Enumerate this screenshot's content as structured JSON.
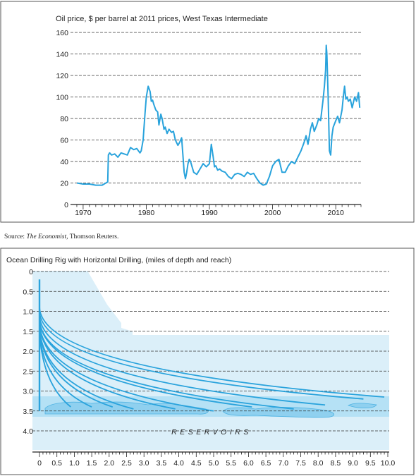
{
  "source": {
    "prefix": "Source: ",
    "publication": "The Economist",
    "rest": ", Thomson Reuters."
  },
  "chart_data": [
    {
      "type": "line",
      "title": "Oil price, $ per barrel at 2011 prices, West Texas Intermediate",
      "xlabel": "",
      "ylabel": "",
      "xlim": [
        1968,
        2014
      ],
      "ylim": [
        0,
        160
      ],
      "x_ticks": [
        1970,
        1980,
        1990,
        2000,
        2010
      ],
      "y_ticks": [
        0,
        20,
        40,
        60,
        80,
        100,
        120,
        140,
        160
      ],
      "grid": "dashed horizontal",
      "color": "#29a3dc",
      "series": [
        {
          "x": [
            1969.0,
            1970.0,
            1971.0,
            1972.0,
            1973.0,
            1973.9,
            1974.0,
            1974.2,
            1974.5,
            1975.0,
            1975.5,
            1976.0,
            1976.5,
            1977.0,
            1977.5,
            1978.0,
            1978.5,
            1979.0,
            1979.2,
            1979.5,
            1979.8,
            1980.0,
            1980.3,
            1980.6,
            1980.8,
            1981.0,
            1981.2,
            1981.5,
            1981.8,
            1982.0,
            1982.3,
            1982.5,
            1982.8,
            1983.0,
            1983.3,
            1983.6,
            1984.0,
            1984.3,
            1984.6,
            1985.0,
            1985.3,
            1985.6,
            1986.0,
            1986.2,
            1986.4,
            1986.6,
            1986.8,
            1987.0,
            1987.5,
            1988.0,
            1988.5,
            1989.0,
            1989.5,
            1990.0,
            1990.3,
            1990.6,
            1990.8,
            1991.0,
            1991.3,
            1991.6,
            1992.0,
            1992.5,
            1993.0,
            1993.5,
            1994.0,
            1994.5,
            1995.0,
            1995.5,
            1996.0,
            1996.5,
            1997.0,
            1997.5,
            1998.0,
            1998.5,
            1999.0,
            1999.5,
            2000.0,
            2000.5,
            2001.0,
            2001.5,
            2002.0,
            2002.5,
            2003.0,
            2003.5,
            2004.0,
            2004.5,
            2005.0,
            2005.3,
            2005.6,
            2006.0,
            2006.3,
            2006.6,
            2007.0,
            2007.3,
            2007.6,
            2008.0,
            2008.2,
            2008.4,
            2008.5,
            2008.6,
            2008.8,
            2009.0,
            2009.2,
            2009.4,
            2009.6,
            2010.0,
            2010.3,
            2010.6,
            2011.0,
            2011.2,
            2011.4,
            2011.6,
            2011.8,
            2012.0,
            2012.3,
            2012.6,
            2013.0,
            2013.3,
            2013.6,
            2013.8
          ],
          "y": [
            20,
            19,
            19,
            18,
            18,
            21,
            46,
            48,
            46,
            47,
            44,
            48,
            47,
            46,
            53,
            51,
            52,
            48,
            50,
            60,
            85,
            100,
            110,
            105,
            96,
            97,
            93,
            88,
            86,
            74,
            84,
            80,
            70,
            72,
            66,
            70,
            67,
            68,
            60,
            55,
            58,
            62,
            30,
            24,
            30,
            38,
            42,
            40,
            30,
            28,
            33,
            38,
            35,
            38,
            56,
            44,
            35,
            36,
            32,
            33,
            31,
            30,
            26,
            24,
            28,
            29,
            28,
            26,
            30,
            28,
            29,
            24,
            20,
            18,
            19,
            26,
            36,
            40,
            42,
            30,
            30,
            36,
            40,
            38,
            44,
            50,
            58,
            64,
            56,
            70,
            76,
            68,
            74,
            80,
            78,
            98,
            110,
            125,
            148,
            140,
            100,
            50,
            46,
            64,
            72,
            78,
            82,
            76,
            88,
            100,
            110,
            98,
            100,
            96,
            98,
            90,
            100,
            96,
            104,
            90
          ]
        }
      ]
    },
    {
      "type": "diagram",
      "title": "Ocean Drilling Rig with Horizontal Drilling, (miles of depth and reach)",
      "xlabel": "",
      "ylabel": "",
      "xlim": [
        0,
        10.0
      ],
      "ylim": [
        4.5,
        0
      ],
      "x_ticks": [
        "0",
        "0.5",
        "1.0",
        "1.5",
        "2.0",
        "2.5",
        "3.0",
        "3.5",
        "4.0",
        "4.5",
        "5.0",
        "5.5",
        "6.0",
        "6.5",
        "7.0",
        "7.5",
        "8.0",
        "8.5",
        "9.0",
        "9.5",
        "10.0"
      ],
      "y_ticks": [
        "0",
        "0.5",
        "1.0",
        "1.5",
        "2.0",
        "2.5",
        "3.0",
        "3.5",
        "4.0"
      ],
      "y_tick_values": [
        0,
        0.5,
        1.0,
        1.5,
        2.0,
        2.5,
        3.0,
        3.5,
        4.0
      ],
      "grid": "dashed horizontal",
      "annotation": "RESERVOIRS",
      "well_head": [
        0,
        0.2
      ],
      "wells": [
        {
          "kickoff_depth": 1.5,
          "end": [
            0.9,
            3.4
          ]
        },
        {
          "kickoff_depth": 1.5,
          "end": [
            1.5,
            3.4
          ]
        },
        {
          "kickoff_depth": 1.4,
          "end": [
            2.1,
            3.4
          ]
        },
        {
          "kickoff_depth": 1.4,
          "end": [
            2.7,
            3.45
          ]
        },
        {
          "kickoff_depth": 1.3,
          "end": [
            3.9,
            3.45
          ]
        },
        {
          "kickoff_depth": 1.3,
          "end": [
            5.0,
            3.5
          ]
        },
        {
          "kickoff_depth": 1.2,
          "end": [
            6.1,
            3.4
          ]
        },
        {
          "kickoff_depth": 1.2,
          "end": [
            7.3,
            3.45
          ]
        },
        {
          "kickoff_depth": 1.1,
          "end": [
            8.2,
            3.35
          ]
        },
        {
          "kickoff_depth": 1.0,
          "end": [
            9.3,
            3.2
          ]
        },
        {
          "kickoff_depth": 0.9,
          "end": [
            9.9,
            3.15
          ]
        }
      ]
    }
  ]
}
